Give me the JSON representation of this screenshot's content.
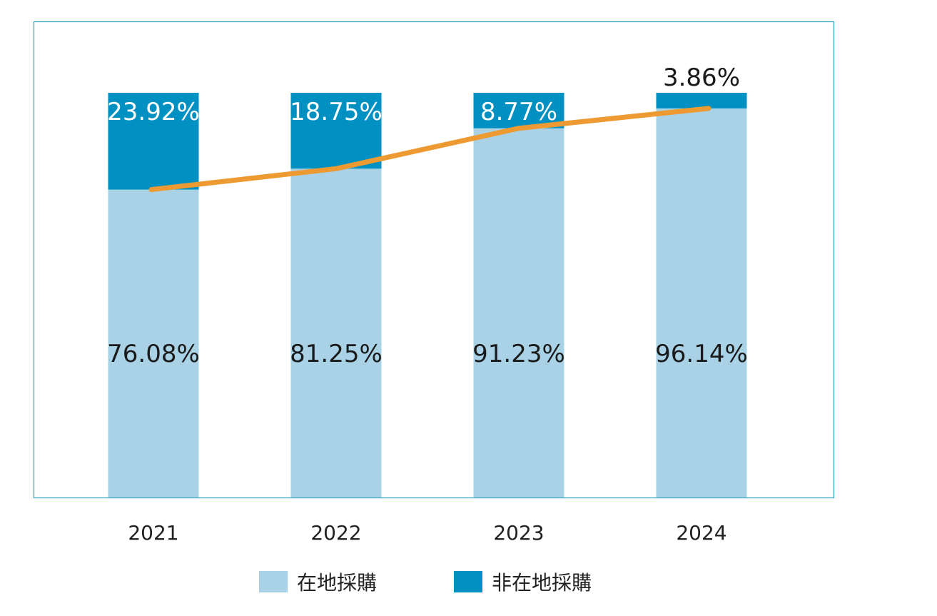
{
  "colors": {
    "local": "#a9d2e6",
    "non_local": "#0091c2",
    "trend": "#ee9a32",
    "frame": "#2a9fbc"
  },
  "chart_data": {
    "type": "bar",
    "stacked": true,
    "categories": [
      "2021",
      "2022",
      "2023",
      "2024"
    ],
    "series": [
      {
        "name": "在地採購",
        "values": [
          76.08,
          81.25,
          91.23,
          96.14
        ],
        "labels": [
          "76.08%",
          "81.25%",
          "91.23%",
          "96.14%"
        ]
      },
      {
        "name": "非在地採購",
        "values": [
          23.92,
          18.75,
          8.77,
          3.86
        ],
        "labels": [
          "23.92%",
          "18.75%",
          "8.77%",
          "3.86%"
        ]
      }
    ],
    "trend_line": {
      "follows": "在地採購",
      "values": [
        76.08,
        81.25,
        91.23,
        96.14
      ]
    },
    "ylim": [
      0,
      100
    ],
    "grid": false,
    "legend": "bottom-center"
  },
  "legend": {
    "items": [
      {
        "label": "在地採購",
        "color": "#a9d2e6"
      },
      {
        "label": "非在地採購",
        "color": "#0091c2"
      }
    ]
  }
}
